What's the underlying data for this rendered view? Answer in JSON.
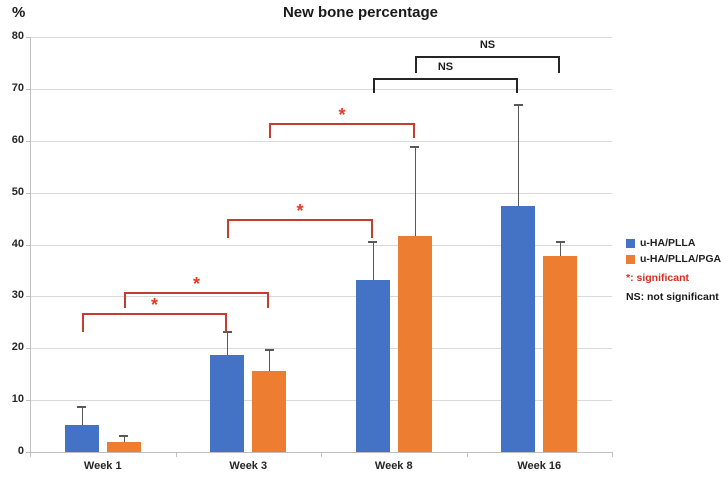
{
  "title": "New bone percentage",
  "y_axis_unit": "%",
  "chart_data": {
    "type": "bar",
    "title": "New bone percentage",
    "xlabel": "",
    "ylabel": "%",
    "ylim": [
      0,
      80
    ],
    "yticks": [
      0,
      10,
      20,
      30,
      40,
      50,
      60,
      70,
      80
    ],
    "grid": true,
    "legend_position": "right",
    "categories": [
      "Week 1",
      "Week 3",
      "Week 8",
      "Week 16"
    ],
    "series": [
      {
        "name": "u-HA/PLLA",
        "color": "#4472C4",
        "values": [
          5.2,
          18.7,
          33.2,
          47.5
        ],
        "errors_up": [
          3.4,
          4.5,
          7.3,
          19.4
        ]
      },
      {
        "name": "u-HA/PLLA/PGA",
        "color": "#ED7D31",
        "values": [
          2.0,
          15.6,
          41.6,
          37.8
        ],
        "errors_up": [
          1.0,
          4.1,
          17.2,
          2.7
        ]
      }
    ],
    "significance_brackets": [
      {
        "label": "*",
        "kind": "significant",
        "from": {
          "category": "Week 1",
          "series": "u-HA/PLLA"
        },
        "to": {
          "category": "Week 3",
          "series": "u-HA/PLLA"
        },
        "level": 26.8,
        "drop": 3.7
      },
      {
        "label": "*",
        "kind": "significant",
        "from": {
          "category": "Week 1",
          "series": "u-HA/PLLA/PGA"
        },
        "to": {
          "category": "Week 3",
          "series": "u-HA/PLLA/PGA"
        },
        "level": 30.8,
        "drop": 3.1
      },
      {
        "label": "*",
        "kind": "significant",
        "from": {
          "category": "Week 3",
          "series": "u-HA/PLLA"
        },
        "to": {
          "category": "Week 8",
          "series": "u-HA/PLLA"
        },
        "level": 44.9,
        "drop": 3.6
      },
      {
        "label": "*",
        "kind": "significant",
        "from": {
          "category": "Week 3",
          "series": "u-HA/PLLA/PGA"
        },
        "to": {
          "category": "Week 8",
          "series": "u-HA/PLLA/PGA"
        },
        "level": 63.4,
        "drop": 2.9
      },
      {
        "label": "NS",
        "kind": "ns",
        "from": {
          "category": "Week 8",
          "series": "u-HA/PLLA"
        },
        "to": {
          "category": "Week 16",
          "series": "u-HA/PLLA"
        },
        "level": 72.1,
        "drop": 2.9
      },
      {
        "label": "NS",
        "kind": "ns",
        "from": {
          "category": "Week 8",
          "series": "u-HA/PLLA/PGA"
        },
        "to": {
          "category": "Week 16",
          "series": "u-HA/PLLA/PGA"
        },
        "level": 76.3,
        "drop": 3.3
      }
    ],
    "bracket_colors": {
      "significant": "#c43e2d",
      "ns": "#262626"
    },
    "bracket_label_colors": {
      "significant": "#e8391d",
      "ns": "#1a1a1a"
    },
    "notes": [
      {
        "text": "*: significant",
        "color": "#d42f1f"
      },
      {
        "text": "NS: not significant",
        "color": "#1a1a1a"
      }
    ]
  }
}
